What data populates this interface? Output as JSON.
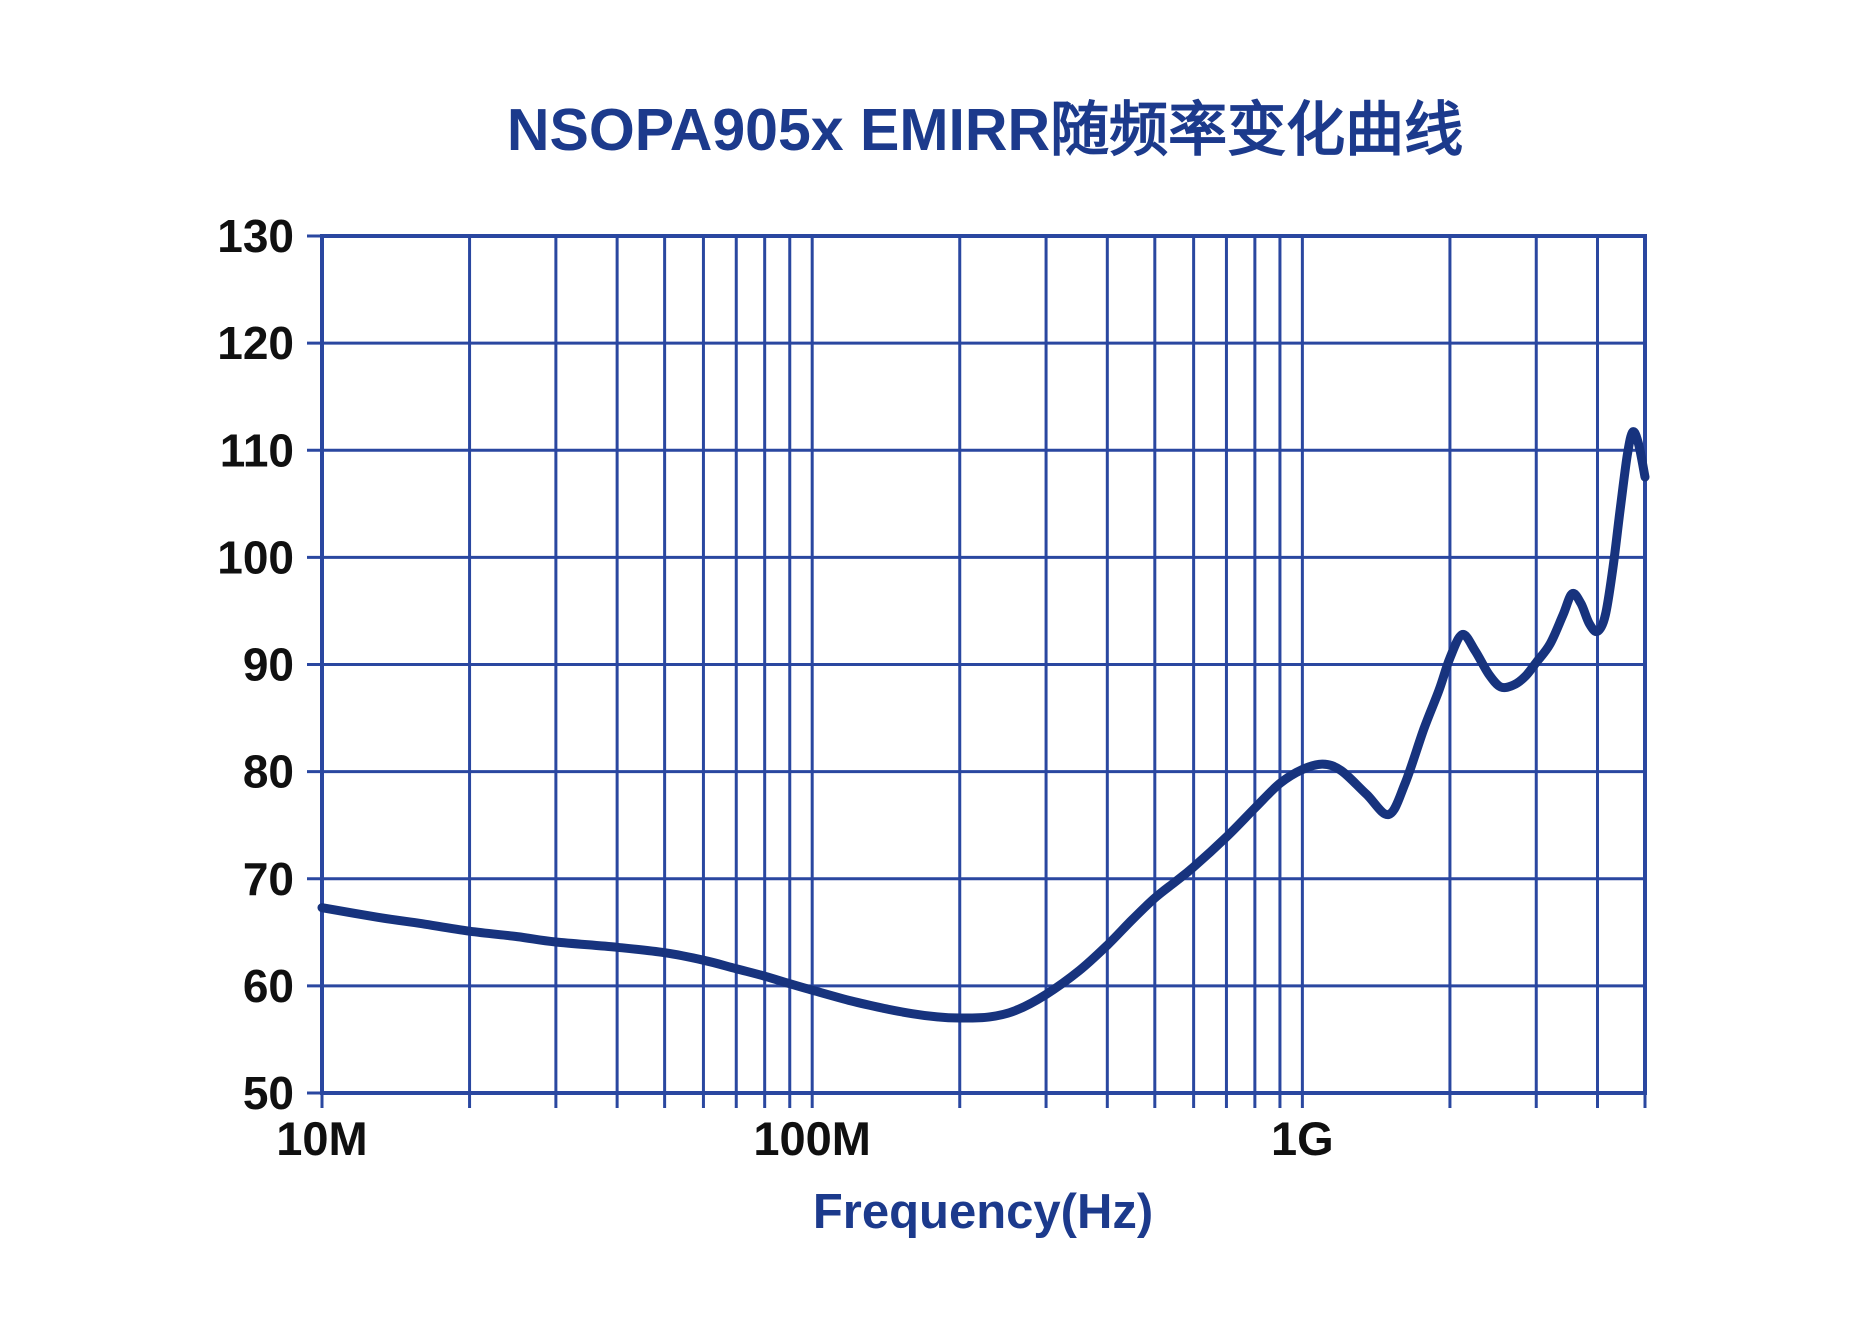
{
  "chart_data": {
    "type": "line",
    "title": "NSOPA905x EMIRR随频率变化曲线",
    "xlabel": "Frequency(Hz)",
    "ylabel": "",
    "x_scale": "log",
    "x_range_hz": [
      10000000,
      5000000000
    ],
    "ylim": [
      50,
      130
    ],
    "y_ticks": [
      50,
      60,
      70,
      80,
      90,
      100,
      110,
      120,
      130
    ],
    "x_major_ticks": [
      {
        "hz": 10000000,
        "label": "10M"
      },
      {
        "hz": 100000000,
        "label": "100M"
      },
      {
        "hz": 1000000000,
        "label": "1G"
      }
    ],
    "grid": "full box with log minor gridlines (2-9 per decade) and outside tick stubs",
    "legend": "none",
    "series": [
      {
        "name": "EMIRR",
        "points_hz_db": [
          [
            10000000,
            67.3
          ],
          [
            13000000,
            66.4
          ],
          [
            16000000,
            65.8
          ],
          [
            20000000,
            65.1
          ],
          [
            25000000,
            64.6
          ],
          [
            30000000,
            64.1
          ],
          [
            40000000,
            63.6
          ],
          [
            50000000,
            63.1
          ],
          [
            60000000,
            62.4
          ],
          [
            70000000,
            61.6
          ],
          [
            80000000,
            60.9
          ],
          [
            90000000,
            60.2
          ],
          [
            100000000,
            59.6
          ],
          [
            120000000,
            58.6
          ],
          [
            140000000,
            57.9
          ],
          [
            160000000,
            57.4
          ],
          [
            180000000,
            57.1
          ],
          [
            200000000,
            57.0
          ],
          [
            230000000,
            57.1
          ],
          [
            260000000,
            57.7
          ],
          [
            300000000,
            59.2
          ],
          [
            350000000,
            61.4
          ],
          [
            400000000,
            63.8
          ],
          [
            450000000,
            66.2
          ],
          [
            500000000,
            68.2
          ],
          [
            550000000,
            69.7
          ],
          [
            600000000,
            71.1
          ],
          [
            700000000,
            73.9
          ],
          [
            800000000,
            76.6
          ],
          [
            900000000,
            78.9
          ],
          [
            1000000000,
            80.2
          ],
          [
            1100000000,
            80.7
          ],
          [
            1200000000,
            80.1
          ],
          [
            1350000000,
            77.9
          ],
          [
            1500000000,
            76.0
          ],
          [
            1620000000,
            78.9
          ],
          [
            1770000000,
            84.0
          ],
          [
            1900000000,
            87.6
          ],
          [
            2000000000,
            90.6
          ],
          [
            2120000000,
            92.8
          ],
          [
            2250000000,
            91.3
          ],
          [
            2400000000,
            89.1
          ],
          [
            2540000000,
            87.9
          ],
          [
            2700000000,
            88.1
          ],
          [
            2850000000,
            88.9
          ],
          [
            3000000000,
            90.2
          ],
          [
            3200000000,
            91.9
          ],
          [
            3400000000,
            94.6
          ],
          [
            3550000000,
            96.6
          ],
          [
            3700000000,
            95.7
          ],
          [
            3850000000,
            93.8
          ],
          [
            4000000000,
            93.1
          ],
          [
            4150000000,
            94.6
          ],
          [
            4300000000,
            99.0
          ],
          [
            4450000000,
            104.5
          ],
          [
            4600000000,
            109.5
          ],
          [
            4720000000,
            111.7
          ],
          [
            4850000000,
            110.6
          ],
          [
            5000000000,
            107.5
          ]
        ]
      }
    ],
    "colors": {
      "title_text": "#1c3a8c",
      "axis_label_text": "#1c3a8c",
      "grid": "#2a47a0",
      "curve": "#17337e",
      "tick_text": "#101010",
      "background": "#ffffff"
    }
  }
}
